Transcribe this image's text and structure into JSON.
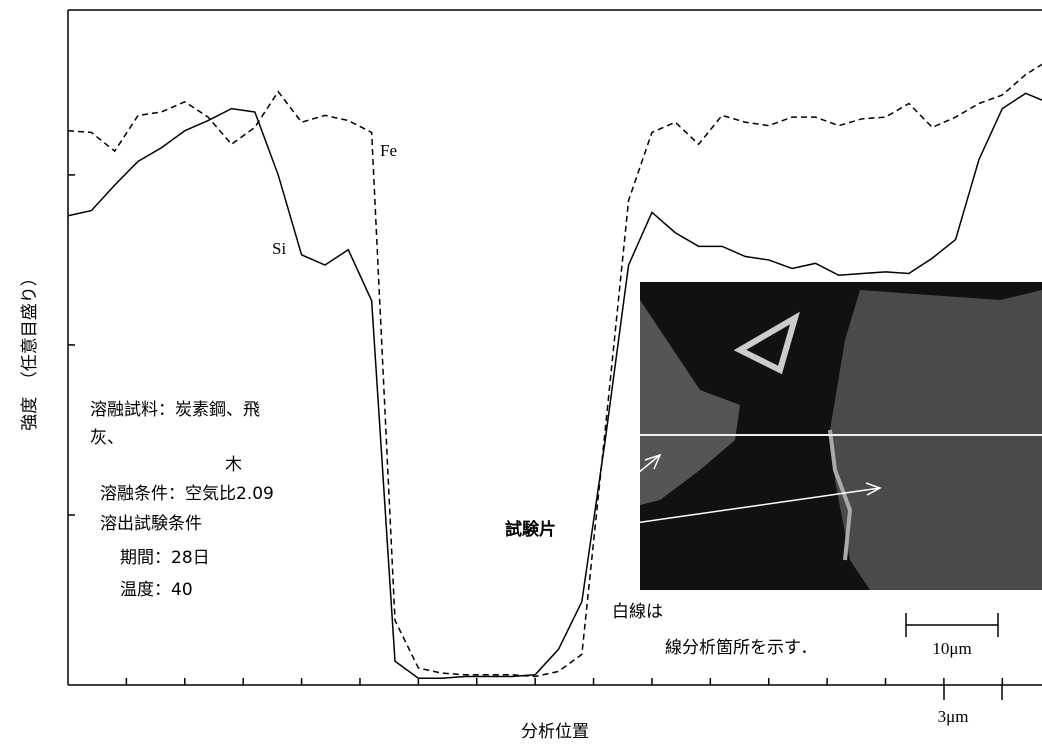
{
  "chart_data": {
    "type": "line",
    "ylabel": "強度　（任意目盛り）",
    "xlabel": "分析位置",
    "xlim": [
      0,
      16.68
    ],
    "ylim": [
      0,
      3.97
    ],
    "xticks": [
      1,
      2,
      3,
      4,
      5,
      6,
      7,
      8,
      9,
      10,
      11,
      12,
      13,
      14,
      15,
      16
    ],
    "yticks": [
      1,
      2,
      3
    ],
    "x": [
      0,
      0.4,
      0.8,
      1.2,
      1.6,
      2.0,
      2.4,
      2.8,
      3.2,
      3.6,
      4.0,
      4.4,
      4.8,
      5.2,
      5.6,
      6.0,
      6.4,
      6.8,
      7.2,
      7.6,
      8.0,
      8.4,
      8.8,
      9.2,
      9.6,
      10.0,
      10.4,
      10.8,
      11.2,
      11.6,
      12.0,
      12.4,
      12.8,
      13.2,
      13.6,
      14.0,
      14.4,
      14.8,
      15.2,
      15.6,
      16.0,
      16.4,
      16.68
    ],
    "series": [
      {
        "name": "Fe",
        "color": "#000000",
        "line_style": "dashed",
        "values": [
          3.26,
          3.25,
          3.14,
          3.35,
          3.37,
          3.43,
          3.34,
          3.18,
          3.28,
          3.49,
          3.31,
          3.35,
          3.32,
          3.25,
          0.38,
          0.1,
          0.07,
          0.06,
          0.06,
          0.06,
          0.05,
          0.08,
          0.18,
          1.5,
          2.85,
          3.25,
          3.31,
          3.18,
          3.35,
          3.31,
          3.29,
          3.34,
          3.34,
          3.29,
          3.33,
          3.34,
          3.42,
          3.28,
          3.34,
          3.42,
          3.47,
          3.59,
          3.65
        ]
      },
      {
        "name": "Si",
        "color": "#000000",
        "line_style": "solid",
        "values": [
          2.76,
          2.79,
          2.94,
          3.08,
          3.16,
          3.26,
          3.32,
          3.39,
          3.37,
          3.0,
          2.53,
          2.47,
          2.56,
          2.26,
          0.14,
          0.04,
          0.04,
          0.05,
          0.05,
          0.05,
          0.06,
          0.21,
          0.49,
          1.44,
          2.47,
          2.78,
          2.66,
          2.58,
          2.58,
          2.52,
          2.5,
          2.45,
          2.48,
          2.41,
          2.42,
          2.43,
          2.42,
          2.51,
          2.62,
          3.09,
          3.39,
          3.48,
          3.44
        ]
      }
    ],
    "conditions": [
      "溶融試料：炭素鋼、飛",
      "灰、",
      "木",
      "溶融条件：空気比2.09",
      "溶出試験条件",
      "期間：28日",
      "温度：40"
    ],
    "specimen_label": "試験片",
    "note_lines": [
      "白線は",
      "線分析箇所を示す．"
    ],
    "image_scale": "10μm",
    "axis_scale": "3μm"
  }
}
